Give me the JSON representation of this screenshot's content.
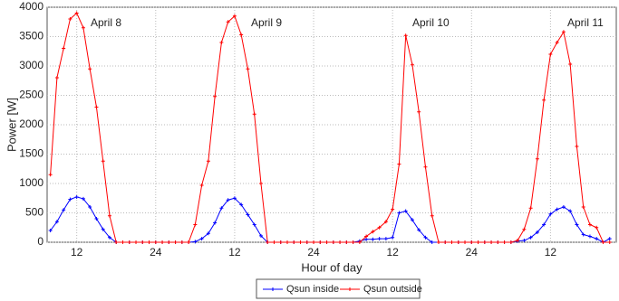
{
  "chart_data": {
    "type": "line",
    "x_label": "Hour of day",
    "y_label": "Power [W]",
    "annotations": [
      "April 8",
      "April 9",
      "April 10",
      "April 11"
    ],
    "x": [
      8,
      9,
      10,
      11,
      12,
      13,
      14,
      15,
      16,
      17,
      18,
      19,
      20,
      21,
      22,
      23,
      24,
      25,
      26,
      27,
      28,
      29,
      30,
      31,
      32,
      33,
      34,
      35,
      36,
      37,
      38,
      39,
      40,
      41,
      42,
      43,
      44,
      45,
      46,
      47,
      48,
      49,
      50,
      51,
      52,
      53,
      54,
      55,
      56,
      57,
      58,
      59,
      60,
      61,
      62,
      63,
      64,
      65,
      66,
      67,
      68,
      69,
      70,
      71,
      72,
      73,
      74,
      75,
      76,
      77,
      78,
      79,
      80,
      81,
      82,
      83,
      84,
      85,
      86,
      87,
      88,
      89,
      90,
      91,
      92,
      93
    ],
    "series": [
      {
        "name": "Qsun inside",
        "color": "#0000ff",
        "values": [
          200,
          350,
          550,
          730,
          770,
          740,
          600,
          400,
          220,
          80,
          0,
          0,
          0,
          0,
          0,
          0,
          0,
          0,
          0,
          0,
          0,
          0,
          10,
          60,
          150,
          330,
          580,
          720,
          750,
          640,
          470,
          300,
          110,
          0,
          0,
          0,
          0,
          0,
          0,
          0,
          0,
          0,
          0,
          0,
          0,
          0,
          0,
          20,
          50,
          50,
          60,
          60,
          80,
          500,
          530,
          380,
          210,
          80,
          0,
          0,
          0,
          0,
          0,
          0,
          0,
          0,
          0,
          0,
          0,
          0,
          0,
          20,
          30,
          80,
          170,
          300,
          480,
          560,
          600,
          530,
          300,
          130,
          100,
          60,
          0,
          60
        ]
      },
      {
        "name": "Qsun outside",
        "color": "#ff0000",
        "values": [
          1150,
          2800,
          3300,
          3800,
          3900,
          3650,
          2950,
          2300,
          1380,
          450,
          0,
          0,
          0,
          0,
          0,
          0,
          0,
          0,
          0,
          0,
          0,
          0,
          300,
          970,
          1380,
          2480,
          3400,
          3750,
          3850,
          3530,
          2950,
          2180,
          1000,
          0,
          0,
          0,
          0,
          0,
          0,
          0,
          0,
          0,
          0,
          0,
          0,
          0,
          0,
          0,
          100,
          180,
          250,
          350,
          560,
          1330,
          3520,
          3020,
          2220,
          1280,
          450,
          0,
          0,
          0,
          0,
          0,
          0,
          0,
          0,
          0,
          0,
          0,
          0,
          30,
          220,
          580,
          1420,
          2420,
          3200,
          3400,
          3580,
          3030,
          1630,
          600,
          300,
          250,
          0,
          0
        ]
      }
    ],
    "xlim": [
      7.5,
      94
    ],
    "xticks": [
      {
        "value": 12,
        "label": "12"
      },
      {
        "value": 24,
        "label": "24"
      },
      {
        "value": 36,
        "label": "12"
      },
      {
        "value": 48,
        "label": "24"
      },
      {
        "value": 60,
        "label": "12"
      },
      {
        "value": 72,
        "label": "24"
      },
      {
        "value": 84,
        "label": "12"
      }
    ],
    "ylim": [
      0,
      4000
    ],
    "yticks": [
      0,
      500,
      1000,
      1500,
      2000,
      2500,
      3000,
      3500,
      4000
    ],
    "grid": true,
    "legend": "bottom"
  }
}
